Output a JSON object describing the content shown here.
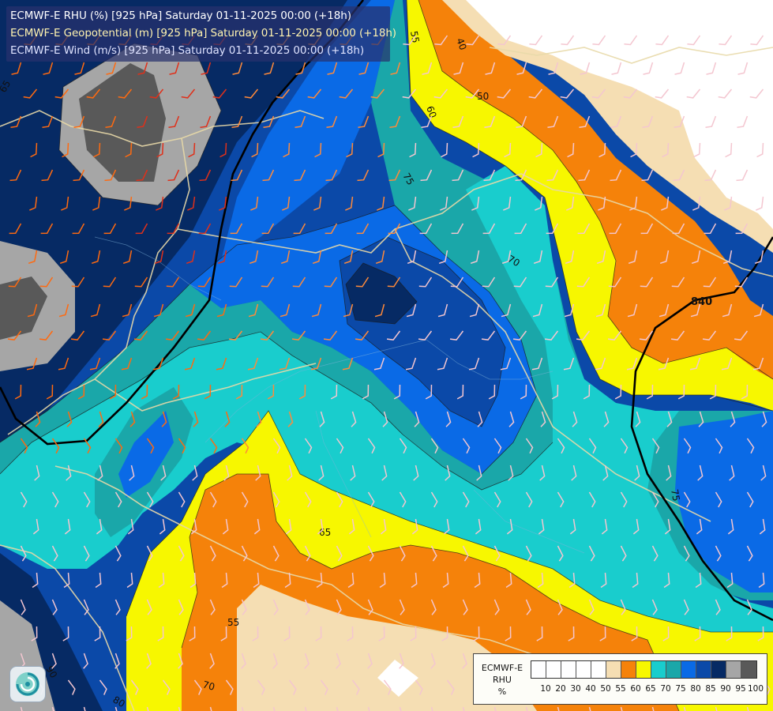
{
  "header": {
    "line1": "ECMWF-E RHU (%) [925 hPa] Saturday 01-11-2025 00:00 (+18h)",
    "line2": "ECMWF-E Geopotential (m) [925 hPa] Saturday 01-11-2025 00:00 (+18h)",
    "line3": "ECMWF-E Wind (m/s) [925 hPa] Saturday 01-11-2025 00:00 (+18h)"
  },
  "legend": {
    "title_lines": [
      "ECMWF-E",
      "RHU",
      "%"
    ],
    "bins": [
      {
        "label": "10",
        "color": "#ffffff"
      },
      {
        "label": "20",
        "color": "#ffffff"
      },
      {
        "label": "30",
        "color": "#ffffff"
      },
      {
        "label": "40",
        "color": "#ffffff"
      },
      {
        "label": "50",
        "color": "#ffffff"
      },
      {
        "label": "55",
        "color": "#f5deb3"
      },
      {
        "label": "60",
        "color": "#f5820a"
      },
      {
        "label": "65",
        "color": "#f7f700"
      },
      {
        "label": "70",
        "color": "#19cdcd"
      },
      {
        "label": "75",
        "color": "#1aa7a9"
      },
      {
        "label": "80",
        "color": "#0a6ae6"
      },
      {
        "label": "85",
        "color": "#0b49a8"
      },
      {
        "label": "90",
        "color": "#062a64"
      },
      {
        "label": "95",
        "color": "#a6a6a6"
      },
      {
        "label": "100",
        "color": "#595959"
      }
    ]
  },
  "contour_labels": {
    "c40": "40",
    "c50": "50",
    "c55a": "55",
    "c55b": "55",
    "c60": "60",
    "c65a": "65",
    "c65b": "65",
    "c70a": "70",
    "c70b": "70",
    "c75a": "75",
    "c75b": "75",
    "c80": "80",
    "c90": "90"
  },
  "geopotential_label": "840",
  "icons": {
    "logo": "ecmwf-swirl-logo-icon"
  }
}
